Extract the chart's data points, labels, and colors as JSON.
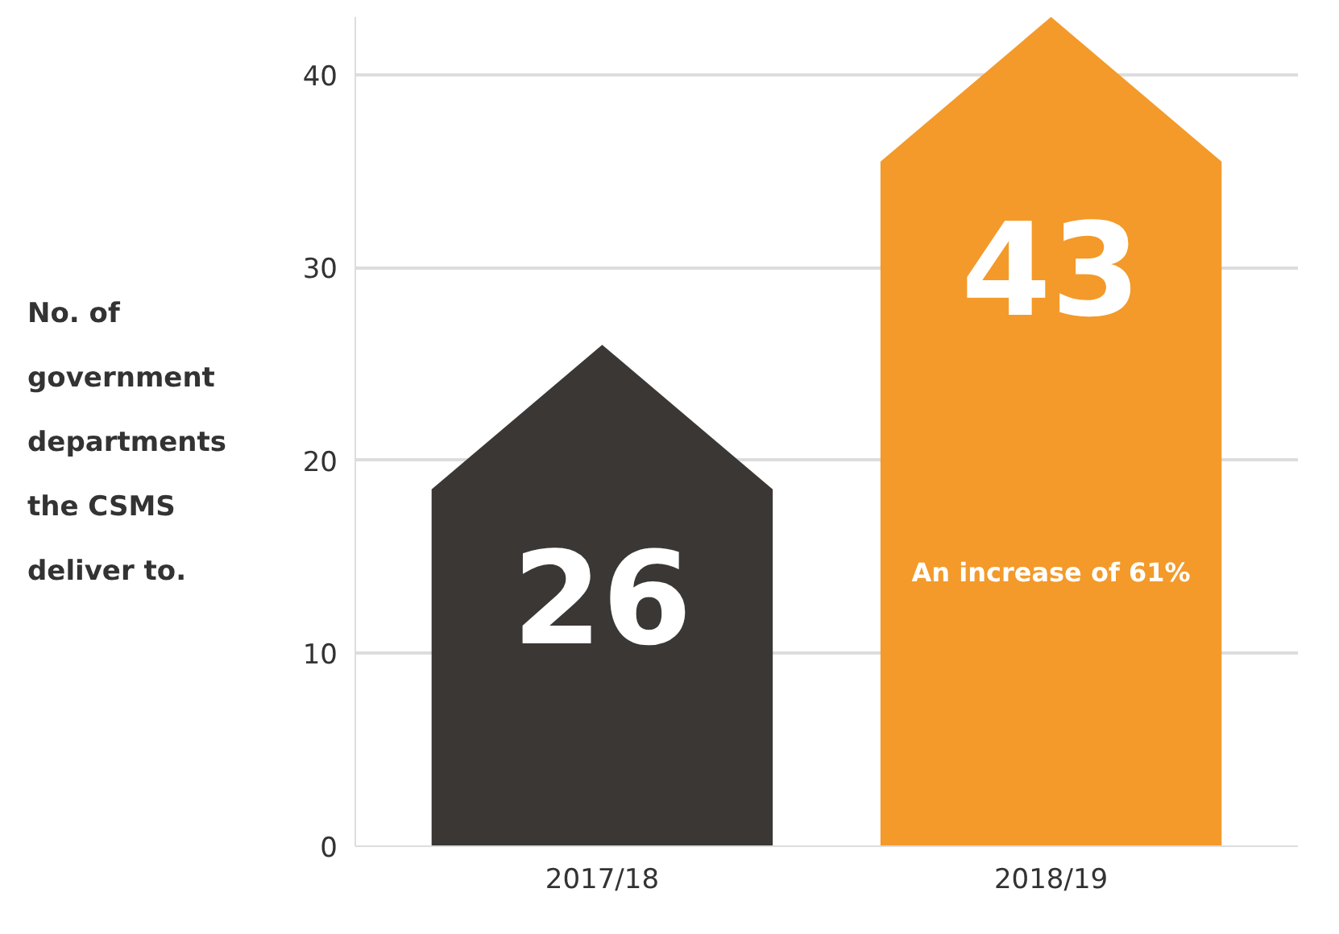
{
  "chart_data": {
    "type": "bar",
    "ylabel": "No. of government departments the CSMS deliver to.",
    "categories": [
      "2017/18",
      "2018/19"
    ],
    "values": [
      26,
      43
    ],
    "colors": [
      "#3b3735",
      "#f39a2a"
    ],
    "data_labels": true,
    "ylim": [
      0,
      43
    ],
    "yticks": [
      0,
      10,
      20,
      30,
      40
    ],
    "grid": "y",
    "annotations": [
      "An increase of 61%"
    ]
  }
}
